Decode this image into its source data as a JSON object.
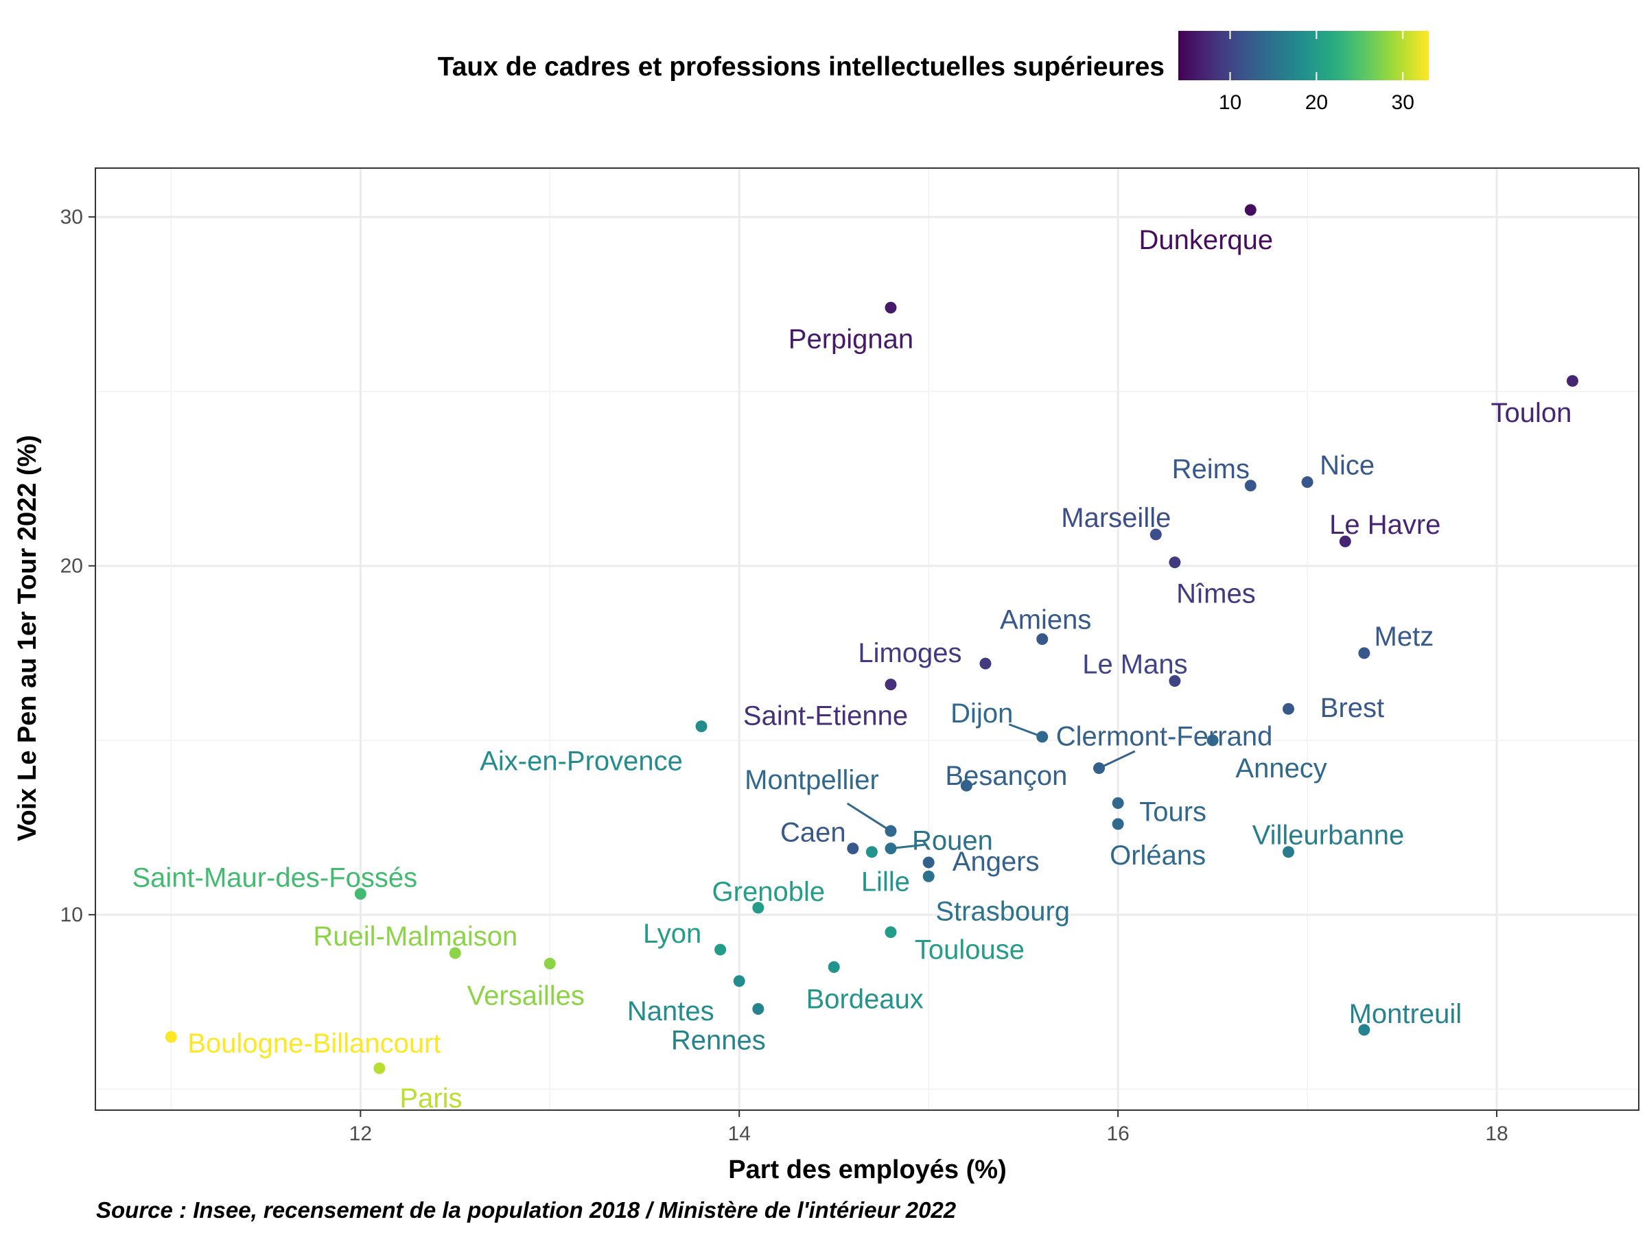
{
  "chart_data": {
    "type": "scatter",
    "xlabel": "Part des employés (%)",
    "ylabel": "Voix Le Pen au 1er Tour 2022 (%)",
    "caption": "Source : Insee, recensement de la population 2018 / Ministère de l'intérieur 2022",
    "xlim": [
      10.6,
      18.75
    ],
    "ylim": [
      4.4,
      31.4
    ],
    "x_ticks": [
      12,
      14,
      16,
      18
    ],
    "y_ticks": [
      10,
      20,
      30
    ],
    "grid": true,
    "color_scale": {
      "name": "viridis",
      "title": "Taux de cadres et professions intellectuelles supérieures",
      "min": 4,
      "max": 33,
      "ticks": [
        10,
        20,
        30
      ],
      "placement": "top"
    },
    "points": [
      {
        "name": "Dunkerque",
        "x": 16.7,
        "y": 30.2,
        "color_value": 5
      },
      {
        "name": "Perpignan",
        "x": 14.8,
        "y": 27.4,
        "color_value": 6
      },
      {
        "name": "Toulon",
        "x": 18.4,
        "y": 25.3,
        "color_value": 7
      },
      {
        "name": "Reims",
        "x": 16.7,
        "y": 22.3,
        "color_value": 12
      },
      {
        "name": "Nice",
        "x": 17.0,
        "y": 22.4,
        "color_value": 12
      },
      {
        "name": "Marseille",
        "x": 16.2,
        "y": 20.9,
        "color_value": 11
      },
      {
        "name": "Le Havre",
        "x": 17.2,
        "y": 20.7,
        "color_value": 7
      },
      {
        "name": "Nîmes",
        "x": 16.3,
        "y": 20.1,
        "color_value": 9
      },
      {
        "name": "Amiens",
        "x": 15.6,
        "y": 17.9,
        "color_value": 12
      },
      {
        "name": "Metz",
        "x": 17.3,
        "y": 17.5,
        "color_value": 12
      },
      {
        "name": "Limoges",
        "x": 15.3,
        "y": 17.2,
        "color_value": 9
      },
      {
        "name": "Le Mans",
        "x": 16.3,
        "y": 16.7,
        "color_value": 10
      },
      {
        "name": "Saint-Etienne",
        "x": 14.8,
        "y": 16.6,
        "color_value": 8
      },
      {
        "name": "Brest",
        "x": 16.9,
        "y": 15.9,
        "color_value": 12
      },
      {
        "name": "Dijon",
        "x": 15.6,
        "y": 15.1,
        "color_value": 14
      },
      {
        "name": "Aix-en-Provence",
        "x": 13.8,
        "y": 15.4,
        "color_value": 18
      },
      {
        "name": "Annecy",
        "x": 16.5,
        "y": 15.0,
        "color_value": 14
      },
      {
        "name": "Clermont-Ferrand",
        "x": 15.9,
        "y": 14.2,
        "color_value": 13
      },
      {
        "name": "Besançon",
        "x": 15.2,
        "y": 13.7,
        "color_value": 13
      },
      {
        "name": "Tours",
        "x": 16.0,
        "y": 13.2,
        "color_value": 14
      },
      {
        "name": "Orléans",
        "x": 16.0,
        "y": 12.6,
        "color_value": 14
      },
      {
        "name": "Montpellier",
        "x": 14.8,
        "y": 12.4,
        "color_value": 14
      },
      {
        "name": "Rouen",
        "x": 14.8,
        "y": 11.9,
        "color_value": 15
      },
      {
        "name": "Caen",
        "x": 14.6,
        "y": 11.9,
        "color_value": 12
      },
      {
        "name": "Villeurbanne",
        "x": 16.9,
        "y": 11.8,
        "color_value": 16
      },
      {
        "name": "Lille",
        "x": 14.7,
        "y": 11.8,
        "color_value": 19
      },
      {
        "name": "Angers",
        "x": 15.0,
        "y": 11.5,
        "color_value": 13
      },
      {
        "name": "Strasbourg",
        "x": 15.0,
        "y": 11.1,
        "color_value": 15
      },
      {
        "name": "Saint-Maur-des-Fossés",
        "x": 12.0,
        "y": 10.6,
        "color_value": 24
      },
      {
        "name": "Grenoble",
        "x": 14.1,
        "y": 10.2,
        "color_value": 20
      },
      {
        "name": "Toulouse",
        "x": 14.8,
        "y": 9.5,
        "color_value": 20
      },
      {
        "name": "Lyon",
        "x": 13.9,
        "y": 9.0,
        "color_value": 20
      },
      {
        "name": "Rueil-Malmaison",
        "x": 12.5,
        "y": 8.9,
        "color_value": 28
      },
      {
        "name": "Versailles",
        "x": 13.0,
        "y": 8.6,
        "color_value": 28
      },
      {
        "name": "Bordeaux",
        "x": 14.5,
        "y": 8.5,
        "color_value": 19
      },
      {
        "name": "Nantes",
        "x": 14.0,
        "y": 8.1,
        "color_value": 18
      },
      {
        "name": "Rennes",
        "x": 14.1,
        "y": 7.3,
        "color_value": 17
      },
      {
        "name": "Montreuil",
        "x": 17.3,
        "y": 6.7,
        "color_value": 17
      },
      {
        "name": "Boulogne-Billancourt",
        "x": 11.0,
        "y": 6.5,
        "color_value": 33
      },
      {
        "name": "Paris",
        "x": 12.1,
        "y": 5.6,
        "color_value": 30
      }
    ]
  }
}
